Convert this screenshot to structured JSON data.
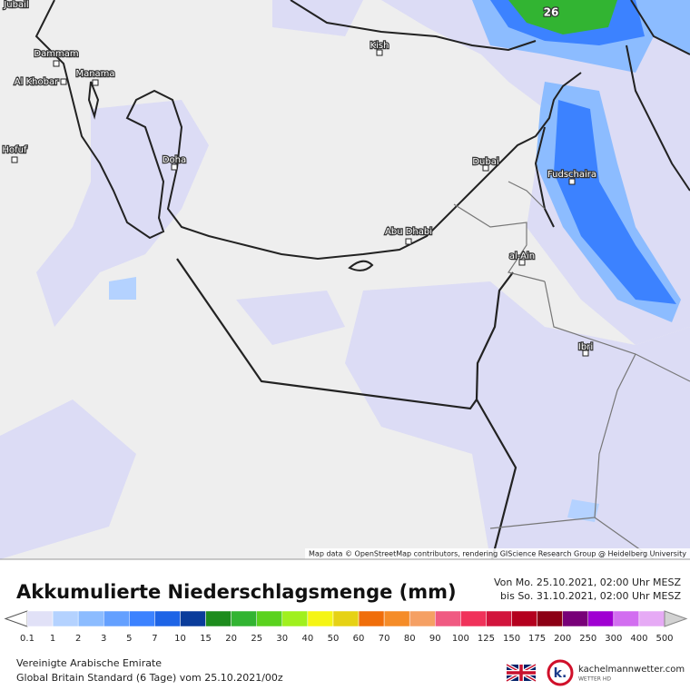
{
  "map": {
    "max_label": "26",
    "attribution": "Map data © OpenStreetMap contributors, rendering GIScience Research Group @ Heidelberg University",
    "cities": [
      "Jubail",
      "Dammam",
      "Manama",
      "Al Khobar",
      "Hofuf",
      "Doha",
      "Kish",
      "Dubai",
      "Fudschaira",
      "Abu Dhabi",
      "al-Ain",
      "Ibri"
    ]
  },
  "legend": {
    "title": "Akkumulierte Niederschlagsmenge (mm)",
    "period_from": "Von Mo. 25.10.2021, 02:00 Uhr MESZ",
    "period_to": "bis So. 31.10.2021, 02:00 Uhr MESZ",
    "labels": [
      "0.1",
      "1",
      "2",
      "3",
      "5",
      "7",
      "10",
      "15",
      "20",
      "25",
      "30",
      "40",
      "50",
      "60",
      "70",
      "80",
      "90",
      "100",
      "125",
      "150",
      "175",
      "200",
      "250",
      "300",
      "400",
      "500"
    ],
    "colors": [
      "#e1e1f7",
      "#b4d2ff",
      "#8cbcff",
      "#64a0ff",
      "#3c82ff",
      "#1e64e6",
      "#0a3c9b",
      "#1e8c1e",
      "#32b432",
      "#5ad21e",
      "#a0f01e",
      "#f5f514",
      "#e6d214",
      "#f06e0a",
      "#f58c28",
      "#f5a064",
      "#f05a82",
      "#f0325a",
      "#d2143c",
      "#b4001e",
      "#8c0014",
      "#780078",
      "#a000d2",
      "#d26ef0",
      "#e6aaf5",
      "#f5dcf5",
      "#d2d2d2"
    ]
  },
  "footer": {
    "region": "Vereinigte Arabische Emirate",
    "model": "Global Britain Standard (6 Tage) vom  25.10.2021/00z",
    "brand": "kachelmannwetter.com",
    "brand_sub": "WETTER HD"
  }
}
